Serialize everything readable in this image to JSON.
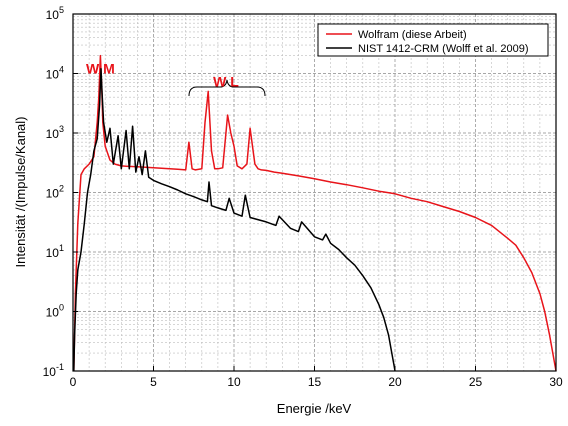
{
  "chart_data": {
    "type": "line",
    "xlabel": "Energie /keV",
    "ylabel": "Intensität /(Impulse/Kanal)",
    "xlim": [
      0,
      30
    ],
    "ylim": [
      0.1,
      100000
    ],
    "y_scale": "log",
    "grid": true,
    "x_ticks": [
      0,
      5,
      10,
      15,
      20,
      25,
      30
    ],
    "y_ticks": [
      {
        "value": 0.1,
        "base": "10",
        "exp": "-1"
      },
      {
        "value": 1,
        "base": "10",
        "exp": "0"
      },
      {
        "value": 10,
        "base": "10",
        "exp": "1"
      },
      {
        "value": 100,
        "base": "10",
        "exp": "2"
      },
      {
        "value": 1000,
        "base": "10",
        "exp": "3"
      },
      {
        "value": 10000,
        "base": "10",
        "exp": "4"
      },
      {
        "value": 100000,
        "base": "10",
        "exp": "5"
      }
    ],
    "legend_position": "top-right",
    "annotations": [
      {
        "text": "W M",
        "x": 1.7,
        "y": 10000,
        "color": "#e8141a"
      },
      {
        "text": "W L",
        "x": 9.5,
        "y": 6000,
        "color": "#e8141a"
      }
    ],
    "series": [
      {
        "name": "Wolfram (diese Arbeit)",
        "color": "#e8141a",
        "x": [
          0.05,
          0.15,
          0.3,
          0.5,
          0.7,
          1.0,
          1.3,
          1.5,
          1.6,
          1.7,
          1.78,
          1.85,
          2.0,
          2.3,
          2.6,
          3.0,
          3.5,
          4.0,
          4.5,
          5.0,
          5.5,
          6.0,
          6.5,
          7.0,
          7.2,
          7.4,
          7.6,
          8.0,
          8.2,
          8.4,
          8.6,
          8.8,
          9.0,
          9.3,
          9.6,
          9.8,
          10.0,
          10.2,
          10.5,
          10.8,
          11.0,
          11.3,
          11.5,
          11.7,
          12.0,
          12.5,
          13.0,
          14.0,
          15.0,
          16.0,
          17.0,
          18.0,
          19.0,
          20.0,
          21.0,
          22.0,
          23.0,
          24.0,
          25.0,
          26.0,
          27.0,
          27.5,
          28.0,
          28.5,
          29.0,
          29.3,
          29.6,
          29.8,
          30.0
        ],
        "y": [
          0.1,
          2,
          30,
          200,
          250,
          300,
          400,
          1500,
          4000,
          20000,
          6000,
          1500,
          600,
          350,
          300,
          280,
          275,
          270,
          265,
          260,
          255,
          250,
          245,
          240,
          700,
          250,
          240,
          250,
          1500,
          5000,
          500,
          250,
          250,
          260,
          2000,
          1000,
          600,
          280,
          250,
          300,
          1200,
          300,
          250,
          240,
          235,
          220,
          210,
          190,
          170,
          150,
          135,
          120,
          105,
          95,
          80,
          70,
          58,
          48,
          38,
          28,
          17,
          13,
          8,
          4.5,
          2,
          1,
          0.4,
          0.2,
          0.1
        ]
      },
      {
        "name": "NIST 1412-CRM (Wolff et al. 2009)",
        "color": "#000000",
        "x": [
          0.05,
          0.1,
          0.2,
          0.3,
          0.5,
          0.7,
          0.9,
          1.1,
          1.3,
          1.5,
          1.65,
          1.74,
          1.8,
          1.9,
          2.1,
          2.3,
          2.5,
          2.8,
          3.0,
          3.3,
          3.5,
          3.7,
          3.9,
          4.1,
          4.3,
          4.5,
          4.7,
          5.0,
          5.5,
          6.0,
          6.5,
          7.0,
          7.5,
          8.0,
          8.35,
          8.45,
          8.6,
          9.0,
          9.5,
          9.7,
          10.0,
          10.5,
          10.7,
          11.0,
          12.0,
          12.6,
          12.8,
          13.5,
          14.0,
          14.2,
          15.0,
          15.5,
          15.7,
          16.0,
          16.5,
          17.0,
          17.5,
          18.0,
          18.5,
          19.0,
          19.3,
          19.6,
          19.8,
          19.95,
          20.0
        ],
        "y": [
          0.1,
          0.4,
          2,
          5,
          10,
          30,
          100,
          200,
          500,
          800,
          3000,
          12000,
          5000,
          1500,
          700,
          1200,
          300,
          900,
          250,
          1100,
          250,
          1300,
          220,
          400,
          200,
          500,
          180,
          160,
          140,
          125,
          110,
          95,
          85,
          75,
          70,
          150,
          60,
          55,
          50,
          80,
          45,
          40,
          90,
          38,
          32,
          28,
          40,
          25,
          22,
          32,
          18,
          16,
          20,
          14,
          11,
          8,
          6,
          4,
          2.5,
          1.3,
          0.8,
          0.4,
          0.2,
          0.12,
          0.1
        ]
      }
    ]
  }
}
